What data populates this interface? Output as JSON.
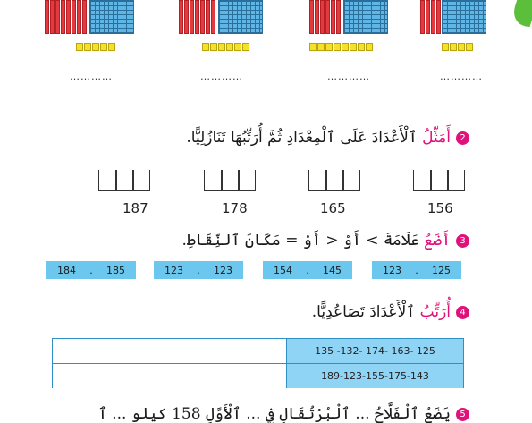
{
  "blocks": [
    {
      "dots": "…………"
    },
    {
      "dots": "…………"
    },
    {
      "dots": "…………"
    },
    {
      "dots": "…………"
    }
  ],
  "q2": {
    "number": "2",
    "verb": "أَمَثِّلُ",
    "rest": " ٱلْأَعْدَادَ عَلَى ٱلْمِعْدَادِ ثُمَّ أُرَتِّبُهَا تَنَازُلِيًّا.",
    "numbers": [
      "187",
      "178",
      "165",
      "156"
    ]
  },
  "q3": {
    "number": "3",
    "verb": "أَضَعُ",
    "rest": " عَلَامَةَ  >  أَوْ  <  أَوْ  =  مَكَانَ ٱلنِّقَاطِ.",
    "pairs": [
      {
        "left": "184",
        "right": "185"
      },
      {
        "left": "123",
        "right": "123"
      },
      {
        "left": "154",
        "right": "145"
      },
      {
        "left": "123",
        "right": "125"
      }
    ],
    "dot": "."
  },
  "q4": {
    "number": "4",
    "verb": "أُرَتِّبُ",
    "rest": " ٱلْأَعْدَادَ تَصَاعُدِيًّا.",
    "rows": [
      "135 -132- 174- 163- 125",
      "189-123-155-175-143"
    ]
  },
  "q5": {
    "number": "5",
    "text": "يَضَعُ ٱلْفَلَّاحُ ... ٱلْبُرْتُقَالِ فِي ... ٱلْأَوَّلِ 158 كيلو ... ٱ"
  }
}
